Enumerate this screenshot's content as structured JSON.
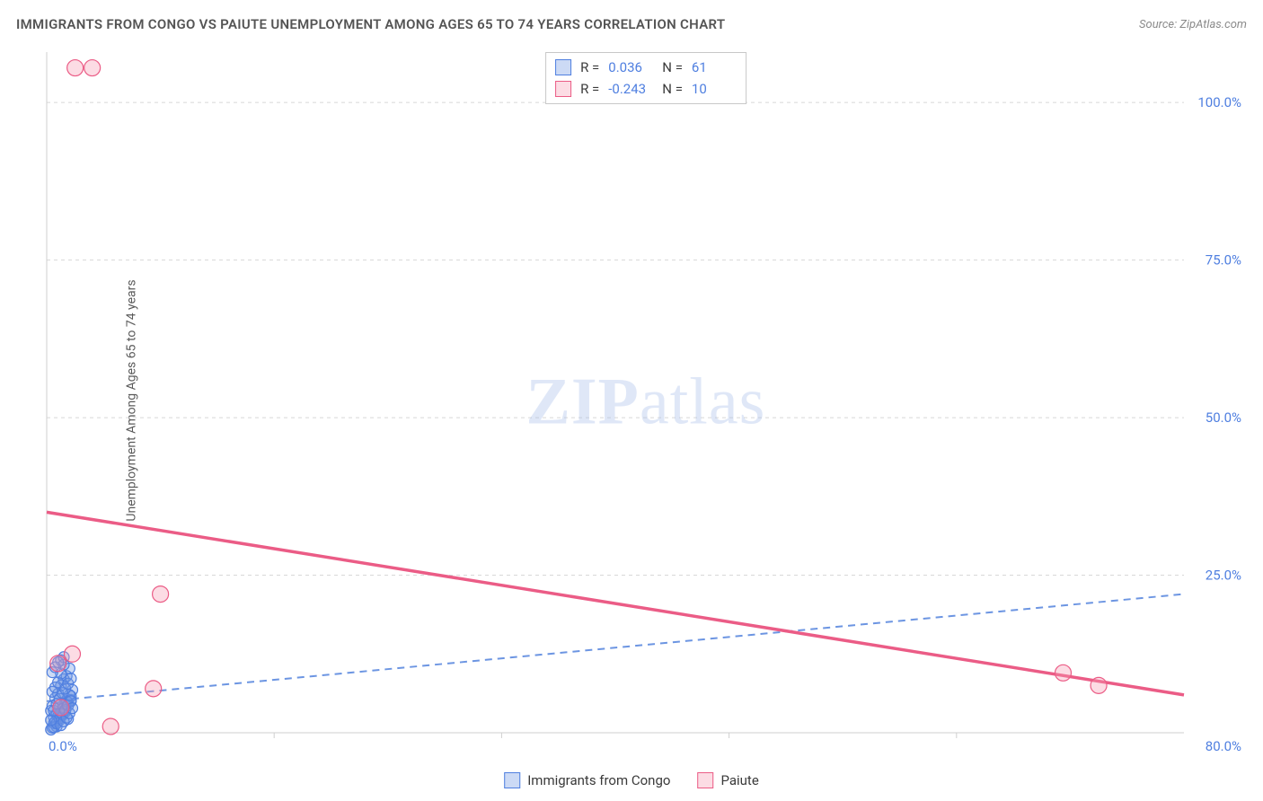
{
  "title": "IMMIGRANTS FROM CONGO VS PAIUTE UNEMPLOYMENT AMONG AGES 65 TO 74 YEARS CORRELATION CHART",
  "source": "Source: ZipAtlas.com",
  "y_axis_label": "Unemployment Among Ages 65 to 74 years",
  "watermark": {
    "bold": "ZIP",
    "rest": "atlas"
  },
  "chart": {
    "type": "scatter",
    "xlim": [
      0,
      80
    ],
    "ylim": [
      0,
      108
    ],
    "y_ticks": [
      {
        "v": 25,
        "label": "25.0%"
      },
      {
        "v": 50,
        "label": "50.0%"
      },
      {
        "v": 75,
        "label": "75.0%"
      },
      {
        "v": 100,
        "label": "100.0%"
      }
    ],
    "x_ticks_labels": {
      "left": "0.0%",
      "right": "80.0%"
    },
    "x_ticks_minor": [
      16,
      32,
      48,
      64
    ],
    "grid_color": "#d8d8d8",
    "axis_color": "#cfcfcf",
    "background_color": "#ffffff",
    "series": [
      {
        "name": "Immigrants from Congo",
        "key": "blue",
        "color_fill": "#6c95e2",
        "color_stroke": "#4f7fe0",
        "marker_radius": 6,
        "r_value": "0.036",
        "n_value": "61",
        "trend": {
          "y_at_x0": 5.0,
          "y_at_xmax": 22.0,
          "dashed": true,
          "width": 2
        },
        "points": [
          [
            0.3,
            3.5
          ],
          [
            0.4,
            4.2
          ],
          [
            0.5,
            2.5
          ],
          [
            0.6,
            5.5
          ],
          [
            0.7,
            3.0
          ],
          [
            0.8,
            6.2
          ],
          [
            0.9,
            4.0
          ],
          [
            1.0,
            7.5
          ],
          [
            1.1,
            2.8
          ],
          [
            1.2,
            8.5
          ],
          [
            1.3,
            3.3
          ],
          [
            1.4,
            9.0
          ],
          [
            1.5,
            4.8
          ],
          [
            1.6,
            10.2
          ],
          [
            1.7,
            5.2
          ],
          [
            1.8,
            6.8
          ],
          [
            1.0,
            11.5
          ],
          [
            1.2,
            12.0
          ],
          [
            0.5,
            1.5
          ],
          [
            0.7,
            1.0
          ],
          [
            0.9,
            2.0
          ],
          [
            1.1,
            3.8
          ],
          [
            1.3,
            4.5
          ],
          [
            1.5,
            2.2
          ],
          [
            1.7,
            5.8
          ],
          [
            0.4,
            0.8
          ],
          [
            0.6,
            1.8
          ],
          [
            0.8,
            2.6
          ],
          [
            1.0,
            3.2
          ],
          [
            1.2,
            4.0
          ],
          [
            1.4,
            5.0
          ],
          [
            1.6,
            6.0
          ],
          [
            0.3,
            0.5
          ],
          [
            0.5,
            0.9
          ],
          [
            0.7,
            1.5
          ],
          [
            0.9,
            2.3
          ],
          [
            1.1,
            3.0
          ],
          [
            1.3,
            3.6
          ],
          [
            1.5,
            4.3
          ],
          [
            1.7,
            5.0
          ],
          [
            0.4,
            6.5
          ],
          [
            0.6,
            7.2
          ],
          [
            0.8,
            8.0
          ],
          [
            1.0,
            9.4
          ],
          [
            1.2,
            10.8
          ],
          [
            0.3,
            2.0
          ],
          [
            0.5,
            3.5
          ],
          [
            0.7,
            4.6
          ],
          [
            0.9,
            5.4
          ],
          [
            1.1,
            6.3
          ],
          [
            1.3,
            7.0
          ],
          [
            1.5,
            7.8
          ],
          [
            1.7,
            8.6
          ],
          [
            0.4,
            9.6
          ],
          [
            0.6,
            10.4
          ],
          [
            0.8,
            11.2
          ],
          [
            1.0,
            1.2
          ],
          [
            1.2,
            1.8
          ],
          [
            1.4,
            2.4
          ],
          [
            1.6,
            3.1
          ],
          [
            1.8,
            3.9
          ]
        ]
      },
      {
        "name": "Paiute",
        "key": "pink",
        "color_fill": "#f59bb2",
        "color_stroke": "#eb5c86",
        "marker_radius": 9,
        "r_value": "-0.243",
        "n_value": "10",
        "trend": {
          "y_at_x0": 35.0,
          "y_at_xmax": 6.0,
          "dashed": false,
          "width": 3.5
        },
        "points": [
          [
            2.0,
            105.5
          ],
          [
            3.2,
            105.5
          ],
          [
            1.8,
            12.5
          ],
          [
            0.8,
            11.0
          ],
          [
            8.0,
            22.0
          ],
          [
            7.5,
            7.0
          ],
          [
            4.5,
            1.0
          ],
          [
            71.5,
            9.5
          ],
          [
            74.0,
            7.5
          ],
          [
            1.0,
            4.0
          ]
        ]
      }
    ]
  },
  "legend_bottom": [
    {
      "swatch": "blue",
      "label": "Immigrants from Congo"
    },
    {
      "swatch": "pink",
      "label": "Paiute"
    }
  ]
}
